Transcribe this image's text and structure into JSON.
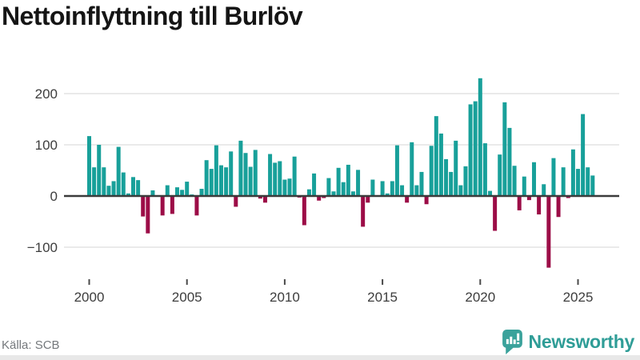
{
  "title": "Nettoinflyttning till Burlöv",
  "footer": {
    "source": "Källa: SCB",
    "brand": "Newsworthy"
  },
  "colors": {
    "positive": "#18A09A",
    "negative": "#9C0D47",
    "grid": "#e3e3e3",
    "zero_line": "#3b3b3b",
    "tick_mark": "#4a4a4a",
    "axis_text": "#3d3d3d",
    "title_text": "#151515",
    "source_text": "#74787c",
    "brand_text": "#2F9D97",
    "brand_icon": "#3AA29B",
    "footer_strip": "#e8e8e8"
  },
  "chart_data": {
    "type": "bar",
    "title": "Nettoinflyttning till Burlöv",
    "frequency": "quarterly",
    "grid": "horizontal",
    "legend": "none",
    "x_tick_labels": [
      "2000",
      "2005",
      "2010",
      "2015",
      "2020",
      "2025"
    ],
    "y_ticks": [
      {
        "label": "200",
        "value": 200
      },
      {
        "label": "100",
        "value": 100
      },
      {
        "label": "0",
        "value": 0
      },
      {
        "label": "−100",
        "value": -100
      }
    ],
    "ylim": [
      -156,
      250
    ],
    "years": [
      {
        "year": 2000,
        "values": [
          117,
          56,
          100,
          56
        ]
      },
      {
        "year": 2001,
        "values": [
          20,
          29,
          96,
          46
        ]
      },
      {
        "year": 2002,
        "values": [
          5,
          37,
          31,
          -40
        ]
      },
      {
        "year": 2003,
        "values": [
          -73,
          11,
          0,
          -38
        ]
      },
      {
        "year": 2004,
        "values": [
          21,
          -35,
          17,
          12
        ]
      },
      {
        "year": 2005,
        "values": [
          28,
          3,
          -38,
          14
        ]
      },
      {
        "year": 2006,
        "values": [
          70,
          53,
          99,
          60
        ]
      },
      {
        "year": 2007,
        "values": [
          56,
          87,
          -21,
          108
        ]
      },
      {
        "year": 2008,
        "values": [
          84,
          57,
          90,
          -5
        ]
      },
      {
        "year": 2009,
        "values": [
          -13,
          82,
          65,
          68
        ]
      },
      {
        "year": 2010,
        "values": [
          32,
          34,
          77,
          -3
        ]
      },
      {
        "year": 2011,
        "values": [
          -57,
          13,
          44,
          -9
        ]
      },
      {
        "year": 2012,
        "values": [
          -4,
          35,
          9,
          55
        ]
      },
      {
        "year": 2013,
        "values": [
          27,
          61,
          9,
          51
        ]
      },
      {
        "year": 2014,
        "values": [
          -60,
          -13,
          32,
          0
        ]
      },
      {
        "year": 2015,
        "values": [
          29,
          5,
          29,
          99
        ]
      },
      {
        "year": 2016,
        "values": [
          21,
          -13,
          105,
          21
        ]
      },
      {
        "year": 2017,
        "values": [
          47,
          -16,
          98,
          156
        ]
      },
      {
        "year": 2018,
        "values": [
          122,
          72,
          47,
          108
        ]
      },
      {
        "year": 2019,
        "values": [
          21,
          58,
          179,
          185
        ]
      },
      {
        "year": 2020,
        "values": [
          230,
          103,
          10,
          -68
        ]
      },
      {
        "year": 2021,
        "values": [
          81,
          183,
          133,
          59
        ]
      },
      {
        "year": 2022,
        "values": [
          -28,
          38,
          -8,
          66
        ]
      },
      {
        "year": 2023,
        "values": [
          -36,
          23,
          -140,
          74
        ]
      },
      {
        "year": 2024,
        "values": [
          -41,
          56,
          -4,
          91
        ]
      },
      {
        "year": 2025,
        "values": [
          53,
          160,
          56,
          40
        ]
      }
    ]
  }
}
